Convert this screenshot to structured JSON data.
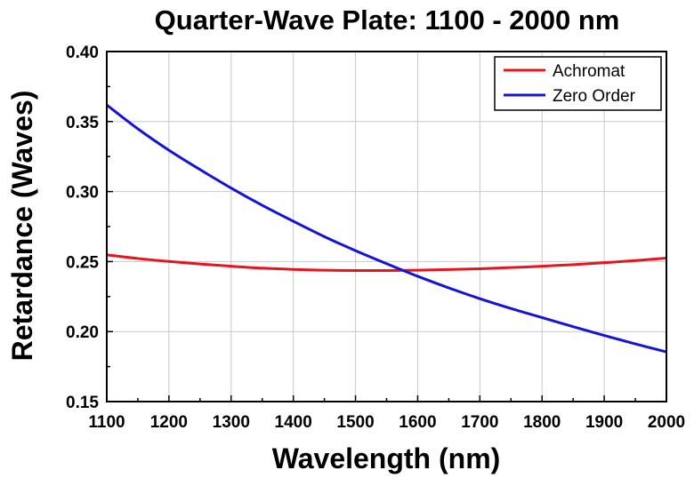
{
  "chart_data": {
    "type": "line",
    "title": "Quarter-Wave Plate: 1100 - 2000 nm",
    "xlabel": "Wavelength (nm)",
    "ylabel": "Retardance (Waves)",
    "xlim": [
      1100,
      2000
    ],
    "ylim": [
      0.15,
      0.4
    ],
    "x_ticks": [
      1100,
      1200,
      1300,
      1400,
      1500,
      1600,
      1700,
      1800,
      1900,
      2000
    ],
    "y_ticks": [
      0.15,
      0.2,
      0.25,
      0.3,
      0.35,
      0.4
    ],
    "x_tick_labels": [
      "1100",
      "1200",
      "1300",
      "1400",
      "1500",
      "1600",
      "1700",
      "1800",
      "1900",
      "2000"
    ],
    "y_tick_labels": [
      "0.15",
      "0.20",
      "0.25",
      "0.30",
      "0.35",
      "0.40"
    ],
    "grid": true,
    "legend_position": "top-right",
    "series": [
      {
        "name": "Achromat",
        "color": "#e8141c",
        "x": [
          1100,
          1150,
          1200,
          1250,
          1300,
          1350,
          1400,
          1450,
          1500,
          1550,
          1600,
          1650,
          1700,
          1750,
          1800,
          1850,
          1900,
          1950,
          2000
        ],
        "y": [
          0.2548,
          0.2522,
          0.2501,
          0.2483,
          0.2467,
          0.2453,
          0.2444,
          0.2438,
          0.2436,
          0.2436,
          0.2438,
          0.2443,
          0.2449,
          0.2457,
          0.2467,
          0.2478,
          0.2492,
          0.2507,
          0.2525
        ]
      },
      {
        "name": "Zero Order",
        "color": "#1414d8",
        "x": [
          1100,
          1150,
          1200,
          1250,
          1300,
          1350,
          1400,
          1450,
          1500,
          1550,
          1600,
          1650,
          1700,
          1750,
          1800,
          1850,
          1900,
          1950,
          2000
        ],
        "y": [
          0.3618,
          0.3448,
          0.3295,
          0.3157,
          0.3025,
          0.2902,
          0.2788,
          0.2678,
          0.2578,
          0.2485,
          0.2395,
          0.2312,
          0.2235,
          0.2165,
          0.21,
          0.2035,
          0.1972,
          0.1912,
          0.1855
        ]
      }
    ]
  }
}
